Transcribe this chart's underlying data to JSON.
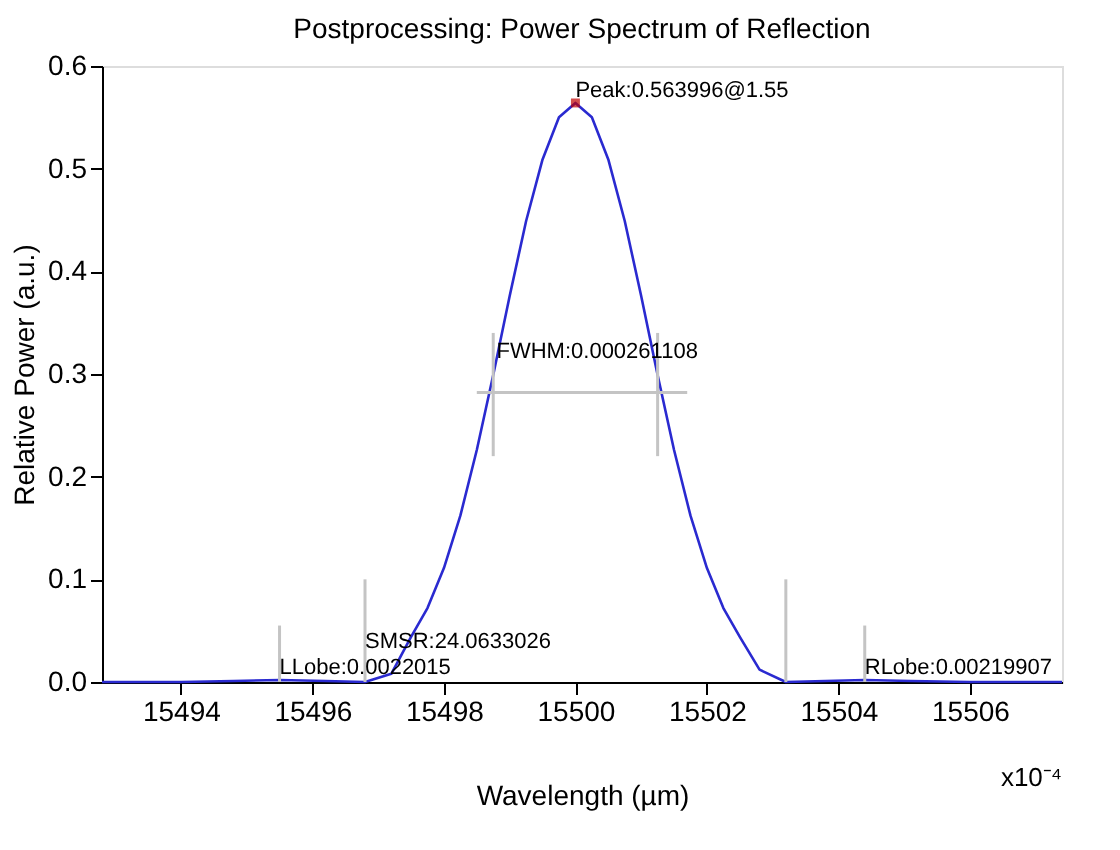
{
  "chart_data": {
    "type": "line",
    "title": "Postprocessing: Power Spectrum of Reflection",
    "xlabel": "Wavelength (µm)",
    "ylabel": "Relative Power (a.u.)",
    "xlim": [
      15492.8,
      15507.4
    ],
    "xticks": [
      15494,
      15496,
      15498,
      15500,
      15502,
      15504,
      15506
    ],
    "ylim": [
      0,
      0.6
    ],
    "yticks": [
      {
        "value": 0,
        "label": "0.0"
      },
      0.1,
      0.2,
      0.3,
      0.4,
      0.5,
      0.6
    ],
    "grid": false,
    "legend": false,
    "series": [
      {
        "color": "#2a2ad0",
        "x": [
          15492.8,
          15494,
          15494.8,
          15495.5,
          15496.2,
          15496.8,
          15497.2,
          15497.5,
          15497.75,
          15498,
          15498.25,
          15498.5,
          15498.75,
          15499,
          15499.25,
          15499.5,
          15499.75,
          15500,
          15500.25,
          15500.5,
          15500.75,
          15501,
          15501.25,
          15501.5,
          15501.75,
          15502,
          15502.25,
          15502.5,
          15502.8,
          15503.2,
          15503.8,
          15504.4,
          15505.1,
          15506,
          15507.4
        ],
        "values": [
          0,
          0,
          0.001,
          0.002,
          0.001,
          0,
          0.008,
          0.044,
          0.072,
          0.111,
          0.162,
          0.226,
          0.299,
          0.376,
          0.449,
          0.509,
          0.55,
          0.564,
          0.55,
          0.509,
          0.449,
          0.376,
          0.299,
          0.226,
          0.162,
          0.111,
          0.072,
          0.044,
          0.012,
          0,
          0.001,
          0.002,
          0.001,
          0,
          0
        ]
      },
      {
        "color": "#c4c4c4",
        "x": [
          15498.5,
          15501.7
        ],
        "values": [
          0.282,
          0.282
        ]
      },
      {
        "color": "#c4c4c4",
        "x": [
          15498.75,
          15498.75
        ],
        "values": [
          0.22,
          0.34
        ]
      },
      {
        "color": "#c4c4c4",
        "x": [
          15501.25,
          15501.25
        ],
        "values": [
          0.22,
          0.34
        ]
      },
      {
        "color": "#c4c4c4",
        "x": [
          15495.5,
          15495.5
        ],
        "values": [
          0,
          0.055
        ]
      },
      {
        "color": "#c4c4c4",
        "x": [
          15496.8,
          15496.8
        ],
        "values": [
          0,
          0.1
        ]
      },
      {
        "color": "#c4c4c4",
        "x": [
          15503.2,
          15503.2
        ],
        "values": [
          0,
          0.1
        ]
      },
      {
        "color": "#c4c4c4",
        "x": [
          15504.4,
          15504.4
        ],
        "values": [
          0,
          0.055
        ]
      },
      {
        "type": "scatter",
        "marker": "square",
        "color": "#c00000",
        "x": [
          15500
        ],
        "values": [
          0.564
        ]
      }
    ],
    "annotations": [
      {
        "text": "Peak:0.563996@1.55",
        "x": 15500,
        "y": 0.564
      },
      {
        "text": "FWHM:0.000261108",
        "x": 15498.8,
        "y": 0.3
      },
      {
        "text": "LLobe:0.0022015",
        "x": 15495.5,
        "y": 0.002
      },
      {
        "text": "SMSR:24.0633026",
        "x": 15496.8,
        "y": 0.002
      },
      {
        "text": "RLobe:0.00219907",
        "x": 15504.4,
        "y": 0.002
      },
      "x10⁻⁴"
    ]
  }
}
